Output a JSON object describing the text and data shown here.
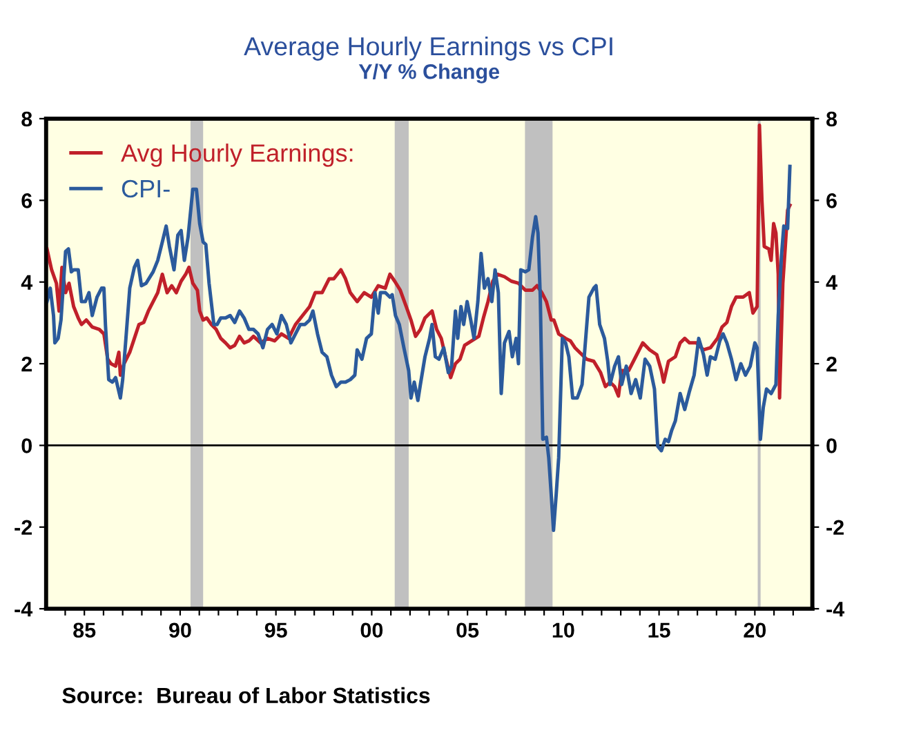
{
  "chart_data": {
    "type": "line",
    "title": "Average Hourly Earnings vs CPI",
    "subtitle": "Y/Y % Change",
    "annotations": [
      "Source:  Bureau of Labor Statistics"
    ],
    "xlim": [
      1983,
      2023
    ],
    "xticks": [
      {
        "value": 1984,
        "label": null
      },
      {
        "value": 1985,
        "label": "85"
      },
      {
        "value": 1986,
        "label": null
      },
      {
        "value": 1987,
        "label": null
      },
      {
        "value": 1988,
        "label": null
      },
      {
        "value": 1989,
        "label": null
      },
      {
        "value": 1990,
        "label": "90"
      },
      {
        "value": 1991,
        "label": null
      },
      {
        "value": 1992,
        "label": null
      },
      {
        "value": 1993,
        "label": null
      },
      {
        "value": 1994,
        "label": null
      },
      {
        "value": 1995,
        "label": "95"
      },
      {
        "value": 1996,
        "label": null
      },
      {
        "value": 1997,
        "label": null
      },
      {
        "value": 1998,
        "label": null
      },
      {
        "value": 1999,
        "label": null
      },
      {
        "value": 2000,
        "label": "00"
      },
      {
        "value": 2001,
        "label": null
      },
      {
        "value": 2002,
        "label": null
      },
      {
        "value": 2003,
        "label": null
      },
      {
        "value": 2004,
        "label": null
      },
      {
        "value": 2005,
        "label": "05"
      },
      {
        "value": 2006,
        "label": null
      },
      {
        "value": 2007,
        "label": null
      },
      {
        "value": 2008,
        "label": null
      },
      {
        "value": 2009,
        "label": null
      },
      {
        "value": 2010,
        "label": "10"
      },
      {
        "value": 2011,
        "label": null
      },
      {
        "value": 2012,
        "label": null
      },
      {
        "value": 2013,
        "label": null
      },
      {
        "value": 2014,
        "label": null
      },
      {
        "value": 2015,
        "label": "15"
      },
      {
        "value": 2016,
        "label": null
      },
      {
        "value": 2017,
        "label": null
      },
      {
        "value": 2018,
        "label": null
      },
      {
        "value": 2019,
        "label": null
      },
      {
        "value": 2020,
        "label": "20"
      },
      {
        "value": 2021,
        "label": null
      },
      {
        "value": 2022,
        "label": null
      }
    ],
    "ylim": [
      -4,
      8
    ],
    "yticks": [
      -4,
      -2,
      0,
      2,
      4,
      6,
      8
    ],
    "y2lim": [
      -4,
      8
    ],
    "y2ticks": [
      -4,
      -2,
      0,
      2,
      4,
      6,
      8
    ],
    "grid": false,
    "legend": "top left",
    "line_style": "solid",
    "ref_lines": [
      {
        "axis": "y",
        "value": 0,
        "color": "#000000"
      }
    ],
    "bands": [
      {
        "axis": "x",
        "from": 1990.54,
        "to": 1991.2,
        "color": "#c0c0c0"
      },
      {
        "axis": "x",
        "from": 2001.2,
        "to": 2001.93,
        "color": "#c0c0c0"
      },
      {
        "axis": "x",
        "from": 2008.0,
        "to": 2009.44,
        "color": "#c0c0c0"
      },
      {
        "axis": "x",
        "from": 2020.15,
        "to": 2020.3,
        "color": "#c0c0c0"
      }
    ],
    "series": [
      {
        "name": "Avg Hourly Earnings:",
        "color": "#c0202a",
        "x": [
          1983.05,
          1983.29,
          1983.54,
          1983.68,
          1983.83,
          1984.02,
          1984.2,
          1984.44,
          1984.68,
          1984.85,
          1985.1,
          1985.41,
          1985.78,
          1986.02,
          1986.22,
          1986.39,
          1986.63,
          1986.8,
          1986.88,
          1987.07,
          1987.37,
          1987.61,
          1987.85,
          1988.1,
          1988.34,
          1988.59,
          1988.83,
          1989.07,
          1989.32,
          1989.56,
          1989.8,
          1990.05,
          1990.29,
          1990.46,
          1990.66,
          1990.9,
          1991.02,
          1991.2,
          1991.39,
          1991.63,
          1991.88,
          1992.12,
          1992.37,
          1992.61,
          1992.85,
          1993.1,
          1993.34,
          1993.59,
          1993.83,
          1994.2,
          1994.56,
          1994.93,
          1995.29,
          1995.66,
          1996.02,
          1996.39,
          1996.76,
          1997.05,
          1997.41,
          1997.78,
          1998.02,
          1998.39,
          1998.63,
          1998.88,
          1999.24,
          1999.61,
          1999.98,
          2000.34,
          2000.71,
          2000.95,
          2001.2,
          2001.49,
          2001.8,
          2002.05,
          2002.29,
          2002.54,
          2002.78,
          2003.15,
          2003.39,
          2003.63,
          2003.88,
          2004.12,
          2004.37,
          2004.61,
          2004.85,
          2005.22,
          2005.59,
          2005.83,
          2006.07,
          2006.32,
          2006.56,
          2006.93,
          2007.29,
          2007.66,
          2008.02,
          2008.39,
          2008.63,
          2008.88,
          2009.12,
          2009.37,
          2009.51,
          2009.76,
          2010.12,
          2010.37,
          2010.61,
          2010.85,
          2011.22,
          2011.59,
          2011.95,
          2012.2,
          2012.44,
          2012.68,
          2012.88,
          2013.05,
          2013.41,
          2013.78,
          2014.15,
          2014.51,
          2014.88,
          2015.12,
          2015.24,
          2015.49,
          2015.85,
          2016.1,
          2016.34,
          2016.59,
          2016.95,
          2017.32,
          2017.68,
          2018.05,
          2018.29,
          2018.54,
          2018.78,
          2019.02,
          2019.39,
          2019.71,
          2019.9,
          2020.12,
          2020.24,
          2020.37,
          2020.49,
          2020.73,
          2020.85,
          2020.98,
          2021.1,
          2021.22,
          2021.29,
          2021.46,
          2021.59,
          2021.71,
          2021.83
        ],
        "values": [
          4.81,
          4.3,
          3.97,
          3.29,
          4.36,
          3.74,
          3.97,
          3.4,
          3.12,
          2.96,
          3.07,
          2.9,
          2.84,
          2.73,
          2.11,
          2.0,
          1.94,
          2.28,
          1.72,
          2.0,
          2.28,
          2.62,
          2.96,
          3.01,
          3.29,
          3.52,
          3.74,
          4.19,
          3.74,
          3.91,
          3.74,
          4.02,
          4.19,
          4.36,
          3.97,
          3.8,
          3.29,
          3.07,
          3.12,
          2.96,
          2.84,
          2.62,
          2.51,
          2.39,
          2.45,
          2.67,
          2.51,
          2.56,
          2.67,
          2.51,
          2.62,
          2.56,
          2.73,
          2.62,
          2.96,
          3.18,
          3.4,
          3.74,
          3.74,
          4.08,
          4.08,
          4.3,
          4.08,
          3.74,
          3.52,
          3.74,
          3.63,
          3.91,
          3.85,
          4.19,
          4.02,
          3.8,
          3.4,
          3.07,
          2.67,
          2.84,
          3.12,
          3.29,
          2.84,
          2.62,
          2.11,
          1.66,
          2.0,
          2.11,
          2.45,
          2.56,
          2.67,
          3.12,
          3.52,
          4.02,
          4.19,
          4.13,
          4.02,
          3.97,
          3.8,
          3.8,
          3.91,
          3.74,
          3.52,
          3.07,
          3.07,
          2.73,
          2.62,
          2.56,
          2.39,
          2.28,
          2.11,
          2.06,
          1.78,
          1.44,
          1.55,
          1.44,
          1.21,
          1.83,
          1.83,
          2.17,
          2.51,
          2.34,
          2.22,
          1.83,
          1.55,
          2.06,
          2.17,
          2.51,
          2.62,
          2.51,
          2.51,
          2.34,
          2.39,
          2.62,
          2.9,
          3.01,
          3.4,
          3.63,
          3.63,
          3.74,
          3.24,
          3.4,
          7.84,
          5.99,
          4.87,
          4.81,
          4.53,
          5.43,
          5.2,
          4.19,
          1.16,
          3.97,
          4.87,
          5.76,
          5.88
        ]
      },
      {
        "name": "CPI-",
        "color": "#2b5a9c",
        "x": [
          1983.05,
          1983.22,
          1983.39,
          1983.46,
          1983.63,
          1983.78,
          1984.02,
          1984.17,
          1984.32,
          1984.44,
          1984.68,
          1984.85,
          1985.05,
          1985.24,
          1985.41,
          1985.66,
          1985.9,
          1986.02,
          1986.1,
          1986.27,
          1986.46,
          1986.63,
          1986.88,
          1987.0,
          1987.17,
          1987.37,
          1987.61,
          1987.78,
          1987.98,
          1988.22,
          1988.59,
          1988.83,
          1989.07,
          1989.27,
          1989.44,
          1989.68,
          1989.88,
          1990.05,
          1990.22,
          1990.41,
          1990.66,
          1990.85,
          1991.02,
          1991.2,
          1991.34,
          1991.51,
          1991.76,
          1991.93,
          1992.12,
          1992.37,
          1992.61,
          1992.85,
          1993.1,
          1993.34,
          1993.59,
          1993.83,
          1994.07,
          1994.32,
          1994.56,
          1994.8,
          1995.05,
          1995.29,
          1995.54,
          1995.78,
          1996.02,
          1996.27,
          1996.51,
          1996.76,
          1996.93,
          1997.17,
          1997.41,
          1997.66,
          1997.9,
          1998.15,
          1998.39,
          1998.63,
          1998.88,
          1999.12,
          1999.24,
          1999.49,
          1999.73,
          1999.98,
          2000.17,
          2000.34,
          2000.46,
          2000.71,
          2000.95,
          2001.07,
          2001.24,
          2001.44,
          2001.68,
          2001.93,
          2002.05,
          2002.22,
          2002.41,
          2002.54,
          2002.78,
          2003.02,
          2003.15,
          2003.32,
          2003.51,
          2003.76,
          2004.0,
          2004.17,
          2004.37,
          2004.49,
          2004.66,
          2004.8,
          2004.98,
          2005.17,
          2005.34,
          2005.54,
          2005.71,
          2005.88,
          2006.07,
          2006.27,
          2006.44,
          2006.61,
          2006.76,
          2006.93,
          2007.17,
          2007.34,
          2007.54,
          2007.66,
          2007.78,
          2008.02,
          2008.2,
          2008.39,
          2008.56,
          2008.68,
          2008.8,
          2008.93,
          2009.12,
          2009.24,
          2009.37,
          2009.49,
          2009.63,
          2009.76,
          2009.95,
          2010.12,
          2010.29,
          2010.49,
          2010.73,
          2010.98,
          2011.17,
          2011.34,
          2011.59,
          2011.71,
          2011.9,
          2012.15,
          2012.32,
          2012.44,
          2012.68,
          2012.88,
          2013.05,
          2013.29,
          2013.54,
          2013.78,
          2014.02,
          2014.27,
          2014.51,
          2014.76,
          2014.93,
          2015.12,
          2015.32,
          2015.49,
          2015.66,
          2015.85,
          2016.1,
          2016.34,
          2016.59,
          2016.83,
          2017.07,
          2017.32,
          2017.51,
          2017.68,
          2017.93,
          2018.17,
          2018.34,
          2018.54,
          2018.78,
          2019.02,
          2019.27,
          2019.51,
          2019.76,
          2020.0,
          2020.12,
          2020.29,
          2020.44,
          2020.61,
          2020.85,
          2021.1,
          2021.22,
          2021.39,
          2021.51,
          2021.71,
          2021.83
        ],
        "values": [
          3.52,
          3.85,
          3.18,
          2.51,
          2.62,
          3.07,
          4.75,
          4.81,
          4.25,
          4.3,
          4.3,
          3.52,
          3.52,
          3.74,
          3.18,
          3.63,
          3.85,
          3.85,
          2.96,
          1.61,
          1.55,
          1.66,
          1.16,
          1.61,
          2.62,
          3.85,
          4.36,
          4.53,
          3.91,
          3.97,
          4.25,
          4.53,
          4.98,
          5.37,
          4.87,
          4.3,
          5.15,
          5.26,
          4.53,
          5.09,
          6.27,
          6.27,
          5.43,
          4.98,
          4.92,
          3.97,
          2.96,
          2.96,
          3.12,
          3.12,
          3.18,
          3.01,
          3.29,
          3.12,
          2.84,
          2.84,
          2.73,
          2.39,
          2.84,
          2.96,
          2.73,
          3.18,
          2.96,
          2.51,
          2.73,
          2.96,
          2.96,
          3.07,
          3.29,
          2.73,
          2.28,
          2.17,
          1.72,
          1.44,
          1.55,
          1.55,
          1.61,
          1.72,
          2.34,
          2.11,
          2.62,
          2.73,
          3.74,
          3.24,
          3.74,
          3.74,
          3.63,
          3.69,
          3.18,
          2.96,
          2.39,
          1.83,
          1.16,
          1.55,
          1.1,
          1.49,
          2.17,
          2.62,
          2.96,
          2.17,
          2.11,
          2.39,
          1.78,
          1.94,
          3.29,
          2.62,
          3.4,
          2.96,
          3.52,
          3.07,
          2.62,
          3.52,
          4.7,
          3.85,
          4.08,
          3.52,
          4.3,
          3.74,
          1.27,
          2.51,
          2.79,
          2.17,
          2.62,
          2.0,
          4.3,
          4.25,
          4.3,
          5.09,
          5.6,
          5.2,
          3.63,
          0.15,
          0.2,
          -0.3,
          -1.2,
          -2.08,
          -1.2,
          -0.3,
          2.62,
          2.51,
          2.17,
          1.16,
          1.16,
          1.49,
          2.62,
          3.63,
          3.85,
          3.91,
          2.96,
          2.62,
          2.06,
          1.49,
          1.94,
          2.17,
          1.49,
          1.94,
          1.27,
          1.61,
          1.16,
          2.11,
          1.94,
          1.38,
          -0.02,
          -0.13,
          0.15,
          0.09,
          0.37,
          0.6,
          1.27,
          0.88,
          1.33,
          1.72,
          2.62,
          2.22,
          1.72,
          2.17,
          2.11,
          2.56,
          2.73,
          2.51,
          2.11,
          1.61,
          2.0,
          1.72,
          1.94,
          2.51,
          2.39,
          0.15,
          0.93,
          1.38,
          1.27,
          1.49,
          3.18,
          4.64,
          5.37,
          5.31,
          6.83
        ]
      }
    ]
  }
}
